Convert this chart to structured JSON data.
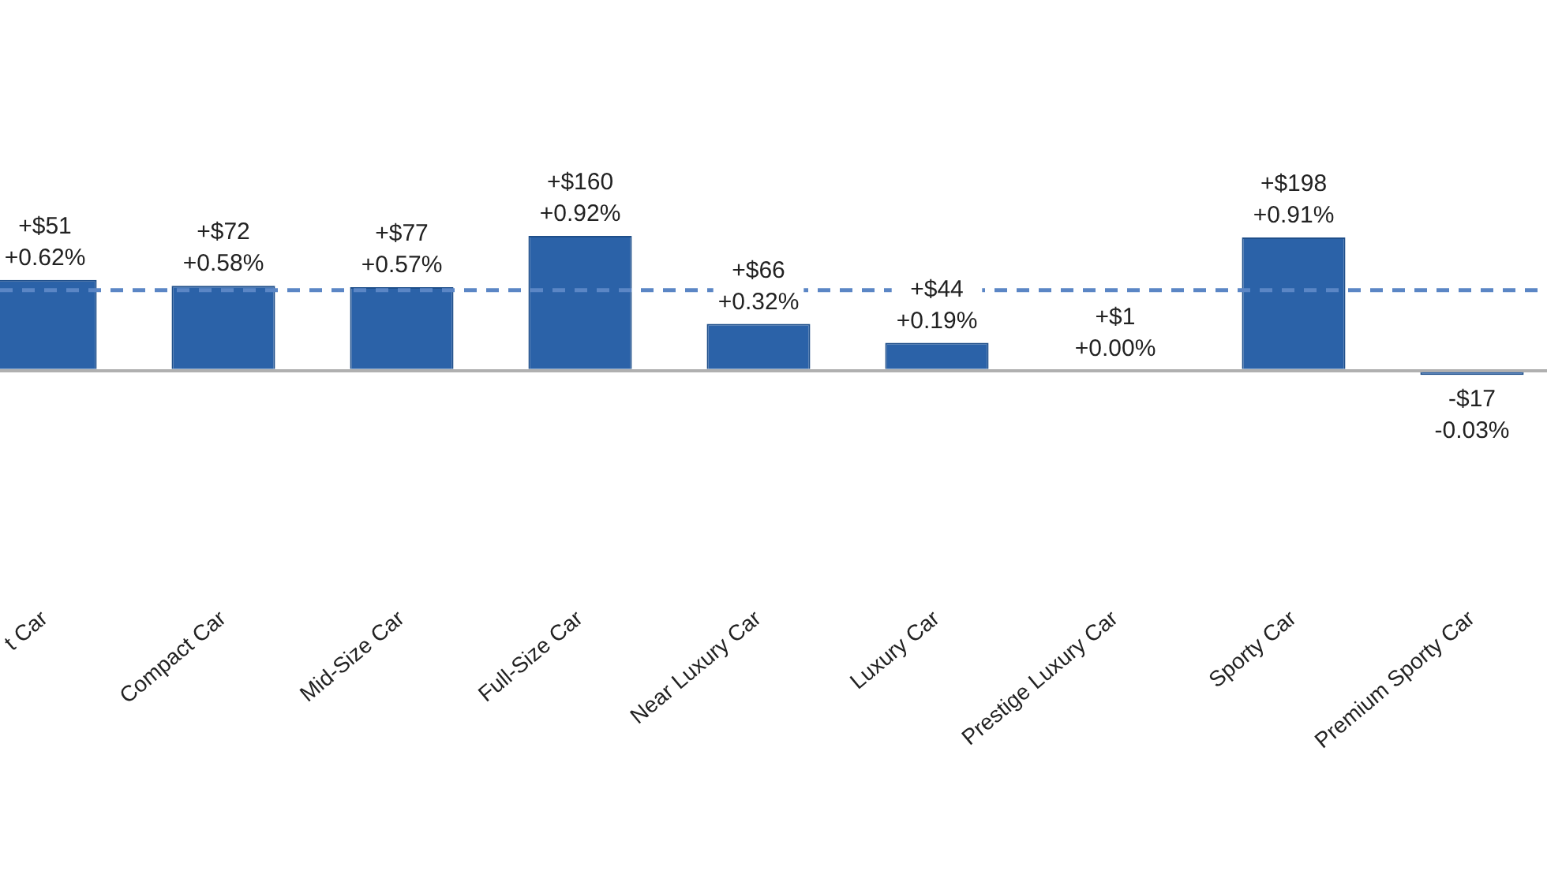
{
  "chart_data": {
    "type": "bar",
    "categories": [
      "t Car",
      "Compact Car",
      "Mid-Size Car",
      "Full-Size Car",
      "Near Luxury Car",
      "Luxury Car",
      "Prestige Luxury Car",
      "Sporty Car",
      "Premium Sporty Car"
    ],
    "values": [
      0.62,
      0.58,
      0.57,
      0.92,
      0.32,
      0.19,
      0.0,
      0.91,
      -0.03
    ],
    "value_labels": [
      "+$51\n+0.62%",
      "+$72\n+0.58%",
      "+$77\n+0.57%",
      "+$160\n+0.92%",
      "+$66\n+0.32%",
      "+$44\n+0.19%",
      "+$1\n+0.00%",
      "+$198\n+0.91%",
      "-$17\n-0.03%"
    ],
    "color": "#2b62a8",
    "ref_lines": [
      {
        "axis": "y",
        "value": 0.55,
        "label": null,
        "color": "#5b86c5",
        "line_style": "dashed"
      }
    ],
    "legend": false,
    "tick_labels": "x"
  }
}
